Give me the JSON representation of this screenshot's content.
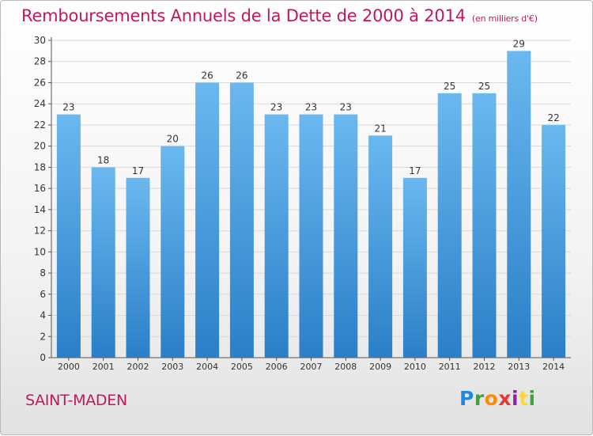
{
  "header": {
    "title": "Remboursements Annuels de la Dette de 2000 à 2014",
    "unit": "(en milliers d'€)"
  },
  "footer": {
    "commune": "SAINT-MADEN",
    "logo_text": "Proxiti",
    "logo_letters": [
      {
        "ch": "P",
        "color": "#1e88e5"
      },
      {
        "ch": "r",
        "color": "#43a047"
      },
      {
        "ch": "o",
        "color": "#fb8c00"
      },
      {
        "ch": "x",
        "color": "#e53935"
      },
      {
        "ch": "i",
        "color": "#8e24aa"
      },
      {
        "ch": "t",
        "color": "#fdd835"
      },
      {
        "ch": "i",
        "color": "#43a047"
      }
    ]
  },
  "colors": {
    "title": "#c2185b",
    "bar_top": "#6bb8f0",
    "bar_bottom": "#2b7fc7",
    "axis": "#555555",
    "grid": "#d9d9d9"
  },
  "chart_data": {
    "type": "bar",
    "title": "Remboursements Annuels de la Dette de 2000 à 2014",
    "unit": "(en milliers d'€)",
    "categories": [
      "2000",
      "2001",
      "2002",
      "2003",
      "2004",
      "2005",
      "2006",
      "2007",
      "2008",
      "2009",
      "2010",
      "2011",
      "2012",
      "2013",
      "2014"
    ],
    "values": [
      23,
      18,
      17,
      20,
      26,
      26,
      23,
      23,
      23,
      21,
      17,
      25,
      25,
      29,
      22
    ],
    "ylim": [
      0,
      30
    ],
    "yticks": [
      0,
      2,
      4,
      6,
      8,
      10,
      12,
      14,
      16,
      18,
      20,
      22,
      24,
      26,
      28,
      30
    ],
    "grid": true,
    "data_labels": true
  }
}
